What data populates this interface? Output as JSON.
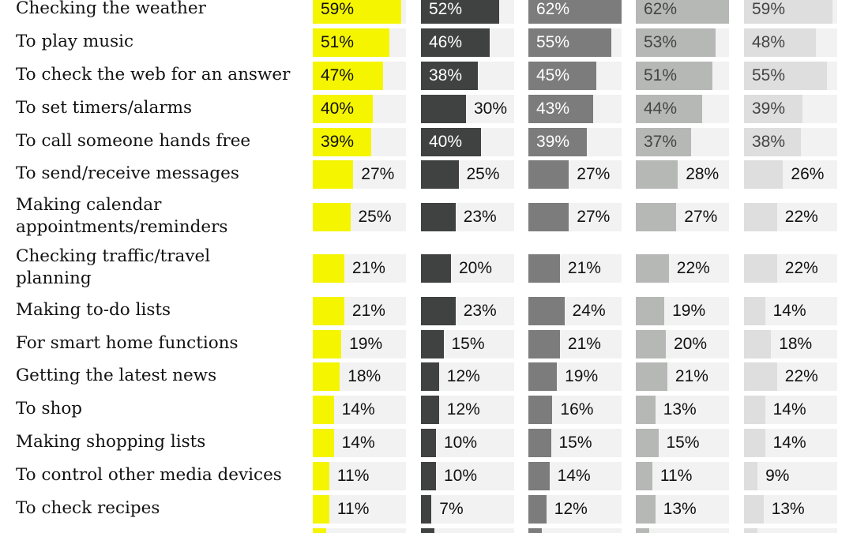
{
  "chart_data": {
    "type": "bar",
    "orientation": "horizontal",
    "unit": "%",
    "xlim": [
      0,
      100
    ],
    "categories": [
      "Checking the weather",
      "To play music",
      "To check the web for an answer",
      "To set timers/alarms",
      "To call someone hands free",
      "To send/receive messages",
      "Making calendar\nappointments/reminders",
      "Checking traffic/travel\nplanning",
      "Making to-do lists",
      "For smart home functions",
      "Getting the latest news",
      "To shop",
      "Making shopping lists",
      "To control other media devices",
      "To check recipes"
    ],
    "series": [
      {
        "color": "#f5f500",
        "values": [
          59,
          51,
          47,
          40,
          39,
          27,
          25,
          21,
          21,
          19,
          18,
          14,
          14,
          11,
          11
        ]
      },
      {
        "color": "#3f4240",
        "values": [
          52,
          46,
          38,
          30,
          40,
          25,
          23,
          20,
          23,
          15,
          12,
          12,
          10,
          10,
          7
        ]
      },
      {
        "color": "#7c7c7c",
        "values": [
          62,
          55,
          45,
          43,
          39,
          27,
          27,
          21,
          24,
          21,
          19,
          16,
          15,
          14,
          12
        ]
      },
      {
        "color": "#b6b8b6",
        "values": [
          62,
          53,
          51,
          44,
          37,
          28,
          27,
          22,
          19,
          20,
          21,
          13,
          15,
          11,
          13
        ]
      },
      {
        "color": "#dedede",
        "values": [
          59,
          48,
          55,
          39,
          38,
          26,
          22,
          22,
          14,
          18,
          22,
          14,
          14,
          9,
          13
        ]
      }
    ],
    "inside_label_colors": [
      "#111111",
      "#ffffff",
      "#ffffff",
      "#444444",
      "#444444"
    ],
    "grid": false,
    "legend": "none"
  }
}
